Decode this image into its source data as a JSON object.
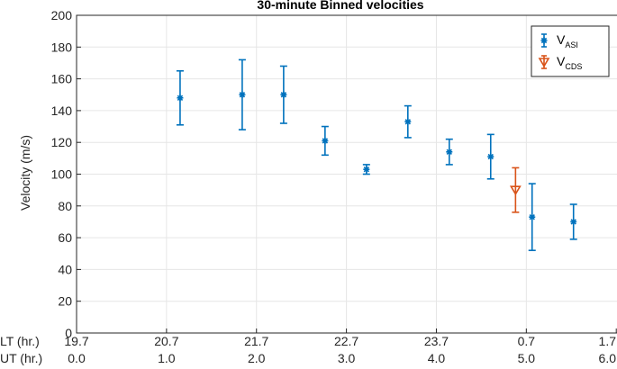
{
  "chart_data": {
    "type": "scatter",
    "title": "30-minute Binned velocities",
    "ylabel": "Velocity (m/s)",
    "ylim": [
      0,
      200
    ],
    "yticks": [
      0,
      20,
      40,
      60,
      80,
      100,
      120,
      140,
      160,
      180,
      200
    ],
    "xlim": [
      0,
      6
    ],
    "grid": true,
    "legend_position": "top-right",
    "xaxis_rows": [
      {
        "label": "LT (hr.)",
        "ticks": [
          "19.7",
          "20.7",
          "21.7",
          "22.7",
          "23.7",
          "0.7",
          "1.7"
        ]
      },
      {
        "label": "UT (hr.)",
        "ticks": [
          "0.0",
          "1.0",
          "2.0",
          "3.0",
          "4.0",
          "5.0",
          "6.0"
        ]
      }
    ],
    "xtick_values": [
      0,
      1,
      2,
      3,
      4,
      5,
      6
    ],
    "series": [
      {
        "name_main": "V",
        "name_sub": "ASI",
        "color": "#0072BD",
        "marker": "asterisk",
        "points": [
          {
            "x": 1.25,
            "y": 148,
            "lo": 131,
            "hi": 165
          },
          {
            "x": 2.0,
            "y": 150,
            "lo": 128,
            "hi": 172
          },
          {
            "x": 2.5,
            "y": 150,
            "lo": 132,
            "hi": 168
          },
          {
            "x": 3.0,
            "y": 121,
            "lo": 112,
            "hi": 130
          },
          {
            "x": 3.5,
            "y": 103,
            "lo": 100,
            "hi": 106
          },
          {
            "x": 4.0,
            "y": 133,
            "lo": 123,
            "hi": 143
          },
          {
            "x": 4.5,
            "y": 114,
            "lo": 106,
            "hi": 122
          },
          {
            "x": 5.0,
            "y": 111,
            "lo": 97,
            "hi": 125
          },
          {
            "x": 5.5,
            "y": 73,
            "lo": 52,
            "hi": 94
          },
          {
            "x": 6.0,
            "y": 70,
            "lo": 59,
            "hi": 81
          }
        ]
      },
      {
        "name_main": "V",
        "name_sub": "CDS",
        "color": "#D95319",
        "marker": "triangle-down",
        "points": [
          {
            "x": 5.3,
            "y": 90,
            "lo": 76,
            "hi": 104
          }
        ]
      }
    ]
  }
}
